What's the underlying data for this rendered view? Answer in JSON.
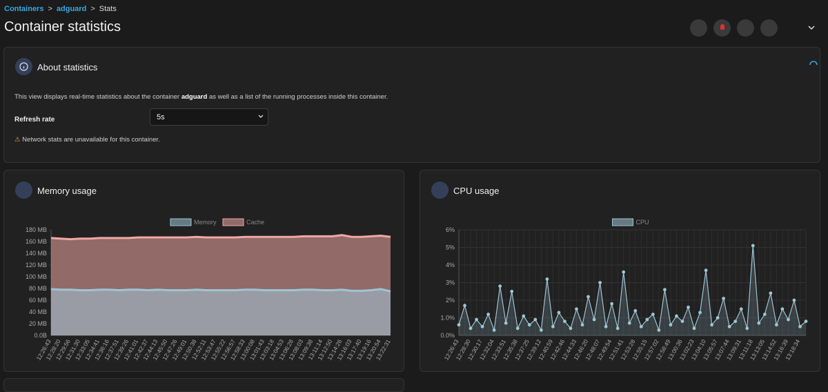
{
  "breadcrumb": [
    "Containers",
    "adguard",
    "Stats"
  ],
  "breadcrumb_separator": ">",
  "header": {
    "title": "Container statistics"
  },
  "about": {
    "title": "About statistics",
    "description_before": "This view displays real-time statistics about the container",
    "container_name": "adguard",
    "description_after": "as well as a list of the running processes inside this container.",
    "refresh_label": "Refresh rate",
    "refresh_value": "5s",
    "warning": "Network stats are unavailable for this container."
  },
  "chart_data": [
    {
      "type": "area",
      "title": "Memory usage",
      "categories": [
        "12:26:43",
        "12:28:20",
        "12:29:56",
        "12:31:30",
        "12:33:05",
        "12:34:41",
        "12:36:16",
        "12:37:51",
        "12:39:26",
        "12:41:01",
        "12:42:37",
        "12:44:13",
        "12:45:50",
        "12:47:26",
        "12:49:01",
        "12:50:38",
        "12:52:11",
        "12:53:47",
        "12:55:22",
        "12:56:57",
        "12:58:33",
        "13:00:08",
        "13:01:43",
        "13:03:18",
        "13:04:53",
        "13:06:28",
        "13:08:03",
        "13:09:38",
        "13:11:14",
        "13:12:50",
        "13:14:26",
        "13:16:03",
        "13:17:40",
        "13:19:16",
        "13:20:54",
        "13:22:31"
      ],
      "series": [
        {
          "name": "Memory",
          "color": "#9ec5d6",
          "values": [
            79,
            78,
            78,
            77,
            77,
            78,
            78,
            77,
            78,
            78,
            77,
            78,
            77,
            77,
            77,
            78,
            77,
            77,
            77,
            77,
            78,
            78,
            77,
            77,
            77,
            77,
            78,
            78,
            77,
            77,
            78,
            76,
            76,
            77,
            79,
            75
          ]
        },
        {
          "name": "Cache",
          "color": "#f0a8a4",
          "values": [
            166,
            165,
            164,
            165,
            165,
            166,
            166,
            166,
            166,
            167,
            167,
            167,
            167,
            167,
            167,
            168,
            167,
            167,
            167,
            167,
            168,
            168,
            168,
            168,
            168,
            168,
            169,
            169,
            169,
            169,
            171,
            168,
            168,
            169,
            170,
            168
          ]
        }
      ],
      "ylim": [
        0,
        180
      ],
      "yticks": [
        {
          "value": 0,
          "label": "0.0B"
        },
        {
          "value": 20,
          "label": "20 MB"
        },
        {
          "value": 40,
          "label": "40 MB"
        },
        {
          "value": 60,
          "label": "60 MB"
        },
        {
          "value": 80,
          "label": "80 MB"
        },
        {
          "value": 100,
          "label": "100 MB"
        },
        {
          "value": 120,
          "label": "120 MB"
        },
        {
          "value": 140,
          "label": "140 MB"
        },
        {
          "value": 160,
          "label": "160 MB"
        },
        {
          "value": 180,
          "label": "180 MB"
        }
      ],
      "grid": false
    },
    {
      "type": "line",
      "title": "CPU usage",
      "categories": [
        "12:26:43",
        null,
        "12:28:30",
        null,
        "12:30:17",
        null,
        "12:32:04",
        null,
        "12:33:51",
        null,
        "12:35:38",
        null,
        "12:37:25",
        null,
        "12:39:12",
        null,
        "12:40:59",
        null,
        "12:42:46",
        null,
        "12:44:33",
        null,
        "12:46:20",
        null,
        "12:48:07",
        null,
        "12:49:54",
        null,
        "12:51:41",
        null,
        "12:53:28",
        null,
        "12:55:15",
        null,
        "12:57:02",
        null,
        "12:58:49",
        null,
        "13:00:36",
        null,
        "13:02:23",
        null,
        "13:04:10",
        null,
        "13:05:57",
        null,
        "13:07:44",
        null,
        "13:09:31",
        null,
        "13:11:18",
        null,
        "13:13:05",
        null,
        "13:14:52",
        null,
        "13:16:39",
        null,
        "13:18:34",
        null
      ],
      "series": [
        {
          "name": "CPU",
          "color": "#9ec5d6",
          "values": [
            0.6,
            1.7,
            0.4,
            0.9,
            0.5,
            1.2,
            0.3,
            2.8,
            0.7,
            2.5,
            0.4,
            1.1,
            0.6,
            0.9,
            0.3,
            3.2,
            0.5,
            1.3,
            0.8,
            0.4,
            1.5,
            0.6,
            2.2,
            0.9,
            3.0,
            0.5,
            1.8,
            0.4,
            3.6,
            0.7,
            1.4,
            0.5,
            0.9,
            1.2,
            0.3,
            2.6,
            0.6,
            1.1,
            0.8,
            1.6,
            0.4,
            1.3,
            3.7,
            0.6,
            1.0,
            2.1,
            0.5,
            0.8,
            1.5,
            0.4,
            5.1,
            0.7,
            1.2,
            2.4,
            0.6,
            1.5,
            0.9,
            2.0,
            0.5,
            0.8
          ]
        }
      ],
      "ylim": [
        0,
        6
      ],
      "yticks": [
        {
          "value": 0,
          "label": "0.0%"
        },
        {
          "value": 1,
          "label": "1.0%"
        },
        {
          "value": 2,
          "label": "2%"
        },
        {
          "value": 3,
          "label": "3%"
        },
        {
          "value": 4,
          "label": "4%"
        },
        {
          "value": 5,
          "label": "5%"
        },
        {
          "value": 6,
          "label": "6%"
        }
      ],
      "grid": true
    }
  ]
}
